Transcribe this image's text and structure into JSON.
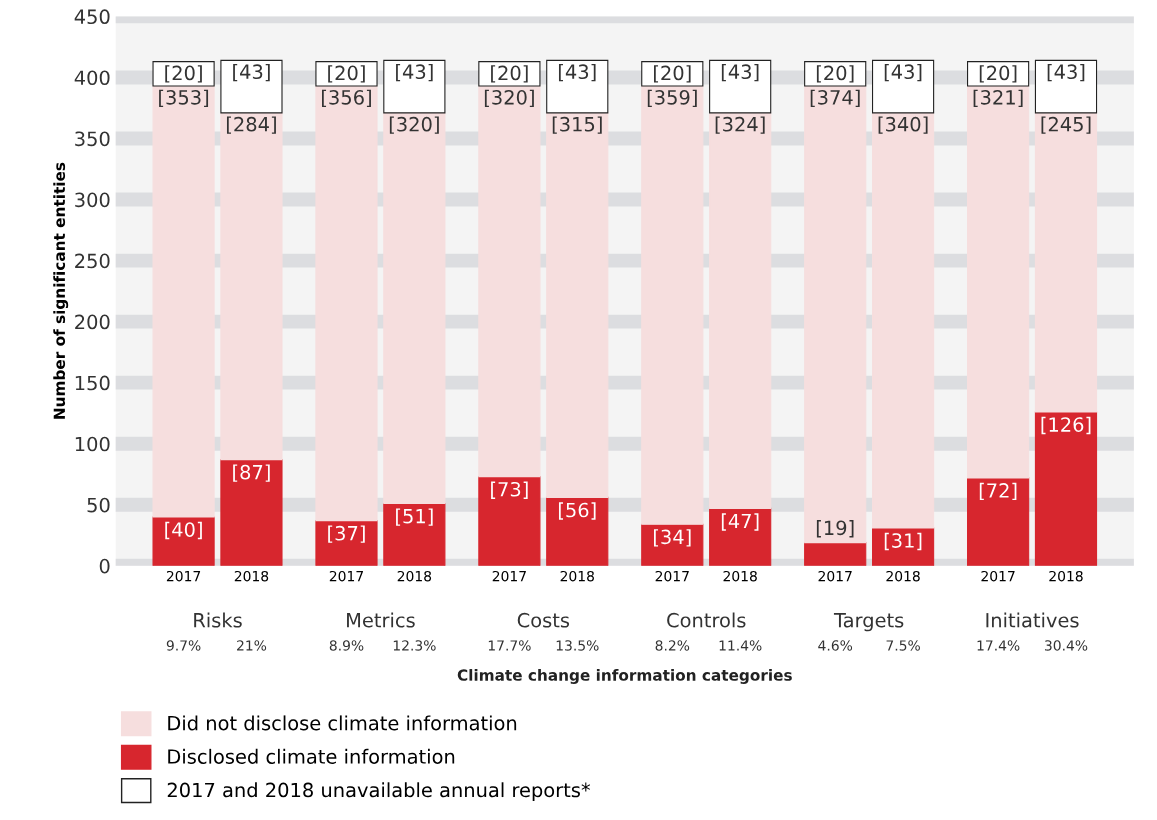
{
  "chart_data": {
    "type": "bar",
    "stacked": true,
    "ylabel": "Number of significant entities",
    "categories": [
      "2017",
      "2018",
      "2017",
      "2018",
      "2017",
      "2018",
      "2017",
      "2018",
      "2017",
      "2018",
      "2017",
      "2018"
    ],
    "series": [
      {
        "name": "Disclosed climate information",
        "color": "#d7262e",
        "values": [
          40,
          87,
          37,
          51,
          73,
          56,
          34,
          47,
          19,
          31,
          72,
          126
        ],
        "value_labels": [
          "[40]",
          "[87]",
          "[37]",
          "[51]",
          "[73]",
          "[56]",
          "[34]",
          "[47]",
          "[19]",
          "[31]",
          "[72]",
          "[126]"
        ]
      },
      {
        "name": "Did not disclose climate information",
        "color": "#f6dede",
        "values": [
          353,
          284,
          356,
          320,
          320,
          315,
          359,
          324,
          374,
          340,
          321,
          245
        ],
        "value_labels": [
          "[353]",
          "[284]",
          "[356]",
          "[320]",
          "[320]",
          "[315]",
          "[359]",
          "[324]",
          "[374]",
          "[340]",
          "[321]",
          "[245]"
        ]
      },
      {
        "name": "2017 and 2018 unavailable annual reports*",
        "color": "#ffffff",
        "values": [
          20,
          43,
          20,
          43,
          20,
          43,
          20,
          43,
          20,
          43,
          20,
          43
        ],
        "value_labels": [
          "[20]",
          "[43]",
          "[20]",
          "[43]",
          "[20]",
          "[43]",
          "[20]",
          "[43]",
          "[20]",
          "[43]",
          "[20]",
          "[43]"
        ]
      }
    ],
    "annotations": [
      "Risks",
      "Metrics",
      "Costs",
      "Controls",
      "Targets",
      "Initiatives",
      "9.7%",
      "21%",
      "8.9%",
      "12.3%",
      "17.7%",
      "13.5%",
      "8.2%",
      "11.4%",
      "4.6%",
      "7.5%",
      "17.4%",
      "30.4%",
      "Climate change information categories"
    ],
    "ylim": [
      0,
      450
    ],
    "yticks": [
      0,
      50,
      100,
      150,
      200,
      250,
      300,
      350,
      400,
      450
    ],
    "grid": "y",
    "legend": "bottom left"
  }
}
